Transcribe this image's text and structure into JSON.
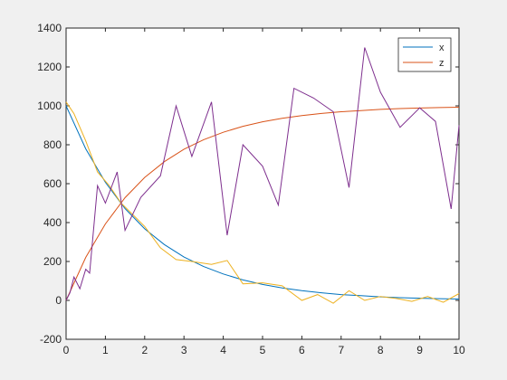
{
  "chart_data": {
    "type": "line",
    "title": "",
    "xlabel": "",
    "ylabel": "",
    "xlim": [
      0,
      10
    ],
    "ylim": [
      -200,
      1400
    ],
    "x_ticks": [
      0,
      1,
      2,
      3,
      4,
      5,
      6,
      7,
      8,
      9,
      10
    ],
    "y_ticks": [
      -200,
      0,
      200,
      400,
      600,
      800,
      1000,
      1200,
      1400
    ],
    "grid": false,
    "legend_position": "top-right",
    "legend": [
      "x",
      "z"
    ],
    "series": [
      {
        "name": "x",
        "color": "#0072bd",
        "x": [
          0,
          0.5,
          1,
          1.5,
          2,
          2.5,
          3,
          3.5,
          4,
          4.5,
          5,
          5.5,
          6,
          6.5,
          7,
          7.5,
          8,
          8.5,
          9,
          9.5,
          10
        ],
        "y": [
          1000,
          779,
          607,
          472,
          368,
          287,
          223,
          174,
          136,
          105,
          82,
          64,
          50,
          39,
          30,
          24,
          18,
          14,
          11,
          9,
          7
        ]
      },
      {
        "name": "z",
        "color": "#d95319",
        "x": [
          0,
          0.5,
          1,
          1.5,
          2,
          2.5,
          3,
          3.5,
          4,
          4.5,
          5,
          5.5,
          6,
          6.5,
          7,
          7.5,
          8,
          8.5,
          9,
          9.5,
          10
        ],
        "y": [
          0,
          221,
          393,
          528,
          632,
          713,
          777,
          826,
          864,
          895,
          918,
          936,
          950,
          961,
          970,
          976,
          982,
          986,
          989,
          991,
          993
        ]
      },
      {
        "color": "#edb120",
        "x": [
          0,
          0.2,
          0.5,
          0.8,
          1.1,
          1.4,
          1.7,
          2.0,
          2.4,
          2.8,
          3.2,
          3.7,
          4.1,
          4.5,
          5.0,
          5.5,
          6.0,
          6.4,
          6.8,
          7.2,
          7.6,
          8.0,
          8.4,
          8.8,
          9.2,
          9.6,
          10
        ],
        "y": [
          1020,
          960,
          820,
          660,
          590,
          500,
          440,
          380,
          270,
          210,
          200,
          185,
          205,
          85,
          90,
          75,
          0,
          30,
          -15,
          50,
          0,
          20,
          10,
          -5,
          20,
          -10,
          35
        ]
      },
      {
        "color": "#7e2f8e",
        "x": [
          0,
          0.1,
          0.2,
          0.35,
          0.5,
          0.6,
          0.8,
          1.0,
          1.3,
          1.5,
          1.9,
          2.4,
          2.8,
          3.2,
          3.7,
          4.1,
          4.5,
          5.0,
          5.4,
          5.8,
          6.3,
          6.8,
          7.2,
          7.6,
          8.0,
          8.5,
          9.0,
          9.4,
          9.8,
          10
        ],
        "y": [
          0,
          40,
          120,
          60,
          160,
          140,
          590,
          500,
          660,
          360,
          530,
          640,
          1000,
          740,
          1020,
          335,
          800,
          690,
          490,
          1090,
          1040,
          970,
          580,
          1300,
          1070,
          890,
          990,
          920,
          470,
          900
        ]
      }
    ]
  }
}
